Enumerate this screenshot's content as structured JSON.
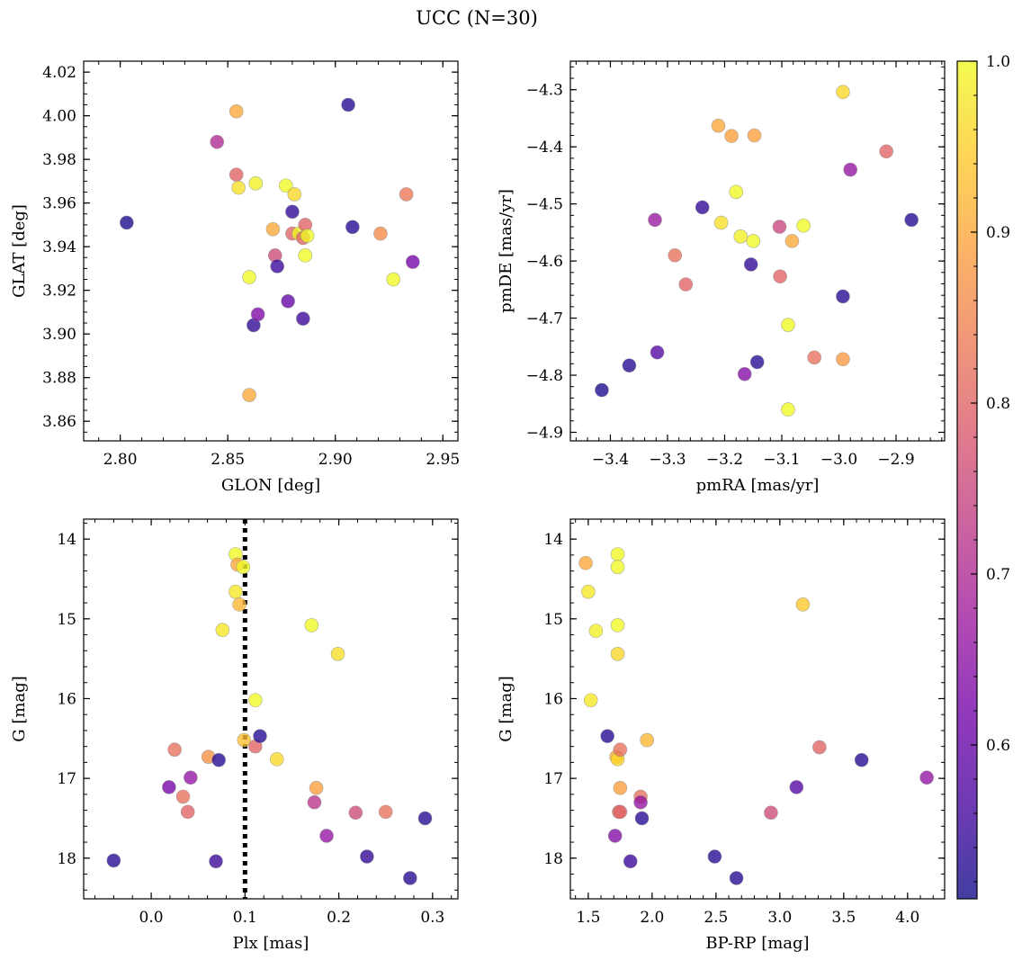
{
  "figure": {
    "title": "UCC (N=30)"
  },
  "colorbar": {
    "range": [
      0.51,
      1.0
    ],
    "ticks": [
      "0.6",
      "0.7",
      "0.8",
      "0.9",
      "1.0"
    ],
    "tick_values": [
      0.6,
      0.7,
      0.8,
      0.9,
      1.0
    ],
    "colormap": "plasma",
    "colormap_stops": [
      "#0d0887",
      "#46039f",
      "#7201a8",
      "#9c179e",
      "#bd3786",
      "#d8576b",
      "#ed7953",
      "#fb9f3a",
      "#fdca26",
      "#f0f921"
    ],
    "alpha": 0.78
  },
  "chart_data": [
    {
      "type": "scatter",
      "id": "glon-glat",
      "xlabel": "GLON [deg]",
      "ylabel": "GLAT [deg]",
      "xlim": [
        2.783,
        2.957
      ],
      "ylim": [
        3.851,
        4.025
      ],
      "xticks": [
        2.8,
        2.85,
        2.9,
        2.95
      ],
      "xtick_labels": [
        "2.80",
        "2.85",
        "2.90",
        "2.95"
      ],
      "yticks": [
        3.86,
        3.88,
        3.9,
        3.92,
        3.94,
        3.96,
        3.98,
        4.0,
        4.02
      ],
      "ytick_labels": [
        "3.86",
        "3.88",
        "3.90",
        "3.92",
        "3.94",
        "3.96",
        "3.98",
        "4.00",
        "4.02"
      ],
      "x_minor_step": 0.01,
      "y_minor_step": 0.005,
      "invert_y": false,
      "points": [
        {
          "x": 2.803,
          "y": 3.951,
          "c": 0.52
        },
        {
          "x": 2.845,
          "y": 3.988,
          "c": 0.7
        },
        {
          "x": 2.854,
          "y": 4.002,
          "c": 0.9
        },
        {
          "x": 2.854,
          "y": 3.973,
          "c": 0.8
        },
        {
          "x": 2.855,
          "y": 3.967,
          "c": 0.97
        },
        {
          "x": 2.863,
          "y": 3.969,
          "c": 0.99
        },
        {
          "x": 2.86,
          "y": 3.926,
          "c": 1.0
        },
        {
          "x": 2.86,
          "y": 3.872,
          "c": 0.9
        },
        {
          "x": 2.862,
          "y": 3.904,
          "c": 0.54
        },
        {
          "x": 2.864,
          "y": 3.909,
          "c": 0.63
        },
        {
          "x": 2.871,
          "y": 3.948,
          "c": 0.9
        },
        {
          "x": 2.872,
          "y": 3.936,
          "c": 0.76
        },
        {
          "x": 2.873,
          "y": 3.931,
          "c": 0.55
        },
        {
          "x": 2.877,
          "y": 3.968,
          "c": 1.0
        },
        {
          "x": 2.878,
          "y": 3.915,
          "c": 0.6
        },
        {
          "x": 2.88,
          "y": 3.956,
          "c": 0.54
        },
        {
          "x": 2.88,
          "y": 3.946,
          "c": 0.8
        },
        {
          "x": 2.881,
          "y": 3.964,
          "c": 0.96
        },
        {
          "x": 2.883,
          "y": 3.946,
          "c": 1.0
        },
        {
          "x": 2.885,
          "y": 3.907,
          "c": 0.55
        },
        {
          "x": 2.885,
          "y": 3.944,
          "c": 0.8
        },
        {
          "x": 2.886,
          "y": 3.95,
          "c": 0.8
        },
        {
          "x": 2.886,
          "y": 3.936,
          "c": 1.0
        },
        {
          "x": 2.887,
          "y": 3.945,
          "c": 1.0
        },
        {
          "x": 2.906,
          "y": 4.005,
          "c": 0.53
        },
        {
          "x": 2.908,
          "y": 3.949,
          "c": 0.53
        },
        {
          "x": 2.921,
          "y": 3.946,
          "c": 0.86
        },
        {
          "x": 2.927,
          "y": 3.925,
          "c": 1.0
        },
        {
          "x": 2.933,
          "y": 3.964,
          "c": 0.83
        },
        {
          "x": 2.936,
          "y": 3.933,
          "c": 0.62
        }
      ]
    },
    {
      "type": "scatter",
      "id": "pmra-pmde",
      "xlabel": "pmRA [mas/yr]",
      "ylabel": "pmDE [mas/yr]",
      "xlim": [
        -3.47,
        -2.815
      ],
      "ylim": [
        -4.915,
        -4.25
      ],
      "xticks": [
        -3.4,
        -3.3,
        -3.2,
        -3.1,
        -3.0,
        -2.9
      ],
      "xtick_labels": [
        "−3.4",
        "−3.3",
        "−3.2",
        "−3.1",
        "−3.0",
        "−2.9"
      ],
      "yticks": [
        -4.9,
        -4.8,
        -4.7,
        -4.6,
        -4.5,
        -4.4,
        -4.3
      ],
      "ytick_labels": [
        "−4.9",
        "−4.8",
        "−4.7",
        "−4.6",
        "−4.5",
        "−4.4",
        "−4.3"
      ],
      "x_minor_step": 0.02,
      "y_minor_step": 0.02,
      "invert_y": false,
      "points": [
        {
          "x": -3.415,
          "y": -4.826,
          "c": 0.52
        },
        {
          "x": -3.367,
          "y": -4.783,
          "c": 0.53
        },
        {
          "x": -3.322,
          "y": -4.528,
          "c": 0.67
        },
        {
          "x": -3.318,
          "y": -4.76,
          "c": 0.58
        },
        {
          "x": -3.287,
          "y": -4.59,
          "c": 0.82
        },
        {
          "x": -3.268,
          "y": -4.641,
          "c": 0.8
        },
        {
          "x": -3.239,
          "y": -4.506,
          "c": 0.54
        },
        {
          "x": -3.211,
          "y": -4.363,
          "c": 0.9
        },
        {
          "x": -3.206,
          "y": -4.533,
          "c": 0.97
        },
        {
          "x": -3.188,
          "y": -4.381,
          "c": 0.89
        },
        {
          "x": -3.18,
          "y": -4.479,
          "c": 1.0
        },
        {
          "x": -3.172,
          "y": -4.557,
          "c": 0.99
        },
        {
          "x": -3.165,
          "y": -4.798,
          "c": 0.64
        },
        {
          "x": -3.154,
          "y": -4.606,
          "c": 0.54
        },
        {
          "x": -3.15,
          "y": -4.565,
          "c": 1.0
        },
        {
          "x": -3.148,
          "y": -4.38,
          "c": 0.89
        },
        {
          "x": -3.143,
          "y": -4.777,
          "c": 0.53
        },
        {
          "x": -3.104,
          "y": -4.54,
          "c": 0.75
        },
        {
          "x": -3.103,
          "y": -4.627,
          "c": 0.8
        },
        {
          "x": -3.089,
          "y": -4.712,
          "c": 1.0
        },
        {
          "x": -3.089,
          "y": -4.86,
          "c": 1.0
        },
        {
          "x": -3.082,
          "y": -4.565,
          "c": 0.9
        },
        {
          "x": -3.062,
          "y": -4.538,
          "c": 1.0
        },
        {
          "x": -3.043,
          "y": -4.769,
          "c": 0.82
        },
        {
          "x": -2.993,
          "y": -4.304,
          "c": 0.96
        },
        {
          "x": -2.993,
          "y": -4.662,
          "c": 0.53
        },
        {
          "x": -2.993,
          "y": -4.772,
          "c": 0.88
        },
        {
          "x": -2.98,
          "y": -4.44,
          "c": 0.66
        },
        {
          "x": -2.917,
          "y": -4.408,
          "c": 0.8
        },
        {
          "x": -2.873,
          "y": -4.528,
          "c": 0.53
        }
      ]
    },
    {
      "type": "scatter",
      "id": "plx-g",
      "xlabel": "Plx [mas]",
      "ylabel": "G [mag]",
      "xlim": [
        -0.072,
        0.327
      ],
      "ylim": [
        13.75,
        18.51
      ],
      "xticks": [
        0.0,
        0.1,
        0.2,
        0.3
      ],
      "xtick_labels": [
        "0.0",
        "0.1",
        "0.2",
        "0.3"
      ],
      "yticks": [
        14,
        15,
        16,
        17,
        18
      ],
      "ytick_labels": [
        "14",
        "15",
        "16",
        "17",
        "18"
      ],
      "x_minor_step": 0.02,
      "y_minor_step": 0.2,
      "invert_y": true,
      "vline": 0.1,
      "points": [
        {
          "x": -0.04,
          "y": 18.03,
          "c": 0.53
        },
        {
          "x": 0.019,
          "y": 17.11,
          "c": 0.62
        },
        {
          "x": 0.025,
          "y": 16.64,
          "c": 0.82
        },
        {
          "x": 0.034,
          "y": 17.23,
          "c": 0.82
        },
        {
          "x": 0.039,
          "y": 17.42,
          "c": 0.8
        },
        {
          "x": 0.042,
          "y": 16.99,
          "c": 0.66
        },
        {
          "x": 0.061,
          "y": 16.73,
          "c": 0.87
        },
        {
          "x": 0.069,
          "y": 18.04,
          "c": 0.55
        },
        {
          "x": 0.072,
          "y": 16.77,
          "c": 0.53
        },
        {
          "x": 0.076,
          "y": 15.14,
          "c": 0.98
        },
        {
          "x": 0.09,
          "y": 14.66,
          "c": 0.98
        },
        {
          "x": 0.09,
          "y": 14.19,
          "c": 1.0
        },
        {
          "x": 0.092,
          "y": 14.32,
          "c": 0.9
        },
        {
          "x": 0.094,
          "y": 14.82,
          "c": 0.92
        },
        {
          "x": 0.098,
          "y": 14.35,
          "c": 1.0
        },
        {
          "x": 0.099,
          "y": 16.52,
          "c": 0.93
        },
        {
          "x": 0.111,
          "y": 16.02,
          "c": 1.0
        },
        {
          "x": 0.111,
          "y": 16.6,
          "c": 0.8
        },
        {
          "x": 0.116,
          "y": 16.47,
          "c": 0.53
        },
        {
          "x": 0.134,
          "y": 16.76,
          "c": 0.96
        },
        {
          "x": 0.171,
          "y": 15.08,
          "c": 1.0
        },
        {
          "x": 0.174,
          "y": 17.3,
          "c": 0.72
        },
        {
          "x": 0.176,
          "y": 17.12,
          "c": 0.89
        },
        {
          "x": 0.187,
          "y": 17.72,
          "c": 0.66
        },
        {
          "x": 0.199,
          "y": 15.44,
          "c": 0.97
        },
        {
          "x": 0.218,
          "y": 17.43,
          "c": 0.76
        },
        {
          "x": 0.23,
          "y": 17.98,
          "c": 0.54
        },
        {
          "x": 0.25,
          "y": 17.42,
          "c": 0.82
        },
        {
          "x": 0.276,
          "y": 18.25,
          "c": 0.53
        },
        {
          "x": 0.292,
          "y": 17.5,
          "c": 0.53
        }
      ]
    },
    {
      "type": "scatter",
      "id": "bprp-g",
      "xlabel": "BP-RP [mag]",
      "ylabel": "G [mag]",
      "xlim": [
        1.36,
        4.29
      ],
      "ylim": [
        13.75,
        18.51
      ],
      "xticks": [
        1.5,
        2.0,
        2.5,
        3.0,
        3.5,
        4.0
      ],
      "xtick_labels": [
        "1.5",
        "2.0",
        "2.5",
        "3.0",
        "3.5",
        "4.0"
      ],
      "yticks": [
        14,
        15,
        16,
        17,
        18
      ],
      "ytick_labels": [
        "14",
        "15",
        "16",
        "17",
        "18"
      ],
      "x_minor_step": 0.1,
      "y_minor_step": 0.2,
      "invert_y": true,
      "points": [
        {
          "x": 1.48,
          "y": 14.3,
          "c": 0.9
        },
        {
          "x": 1.5,
          "y": 14.66,
          "c": 0.98
        },
        {
          "x": 1.52,
          "y": 16.02,
          "c": 0.98
        },
        {
          "x": 1.56,
          "y": 15.15,
          "c": 0.99
        },
        {
          "x": 1.65,
          "y": 16.47,
          "c": 0.53
        },
        {
          "x": 1.71,
          "y": 17.72,
          "c": 0.64
        },
        {
          "x": 1.72,
          "y": 16.73,
          "c": 0.91
        },
        {
          "x": 1.73,
          "y": 14.19,
          "c": 1.0
        },
        {
          "x": 1.73,
          "y": 14.35,
          "c": 1.0
        },
        {
          "x": 1.73,
          "y": 15.08,
          "c": 1.0
        },
        {
          "x": 1.73,
          "y": 15.44,
          "c": 0.96
        },
        {
          "x": 1.73,
          "y": 16.76,
          "c": 0.96
        },
        {
          "x": 1.74,
          "y": 17.42,
          "c": 0.82
        },
        {
          "x": 1.75,
          "y": 17.42,
          "c": 0.8
        },
        {
          "x": 1.75,
          "y": 17.12,
          "c": 0.89
        },
        {
          "x": 1.75,
          "y": 16.64,
          "c": 0.82
        },
        {
          "x": 1.83,
          "y": 18.04,
          "c": 0.55
        },
        {
          "x": 1.91,
          "y": 17.23,
          "c": 0.82
        },
        {
          "x": 1.91,
          "y": 17.3,
          "c": 0.66
        },
        {
          "x": 1.92,
          "y": 17.5,
          "c": 0.53
        },
        {
          "x": 1.96,
          "y": 16.52,
          "c": 0.92
        },
        {
          "x": 2.49,
          "y": 17.98,
          "c": 0.53
        },
        {
          "x": 2.66,
          "y": 18.25,
          "c": 0.53
        },
        {
          "x": 2.93,
          "y": 17.43,
          "c": 0.76
        },
        {
          "x": 3.13,
          "y": 17.11,
          "c": 0.58
        },
        {
          "x": 3.18,
          "y": 14.82,
          "c": 0.94
        },
        {
          "x": 3.31,
          "y": 16.61,
          "c": 0.8
        },
        {
          "x": 3.64,
          "y": 16.77,
          "c": 0.53
        },
        {
          "x": 4.15,
          "y": 16.99,
          "c": 0.66
        }
      ]
    }
  ]
}
